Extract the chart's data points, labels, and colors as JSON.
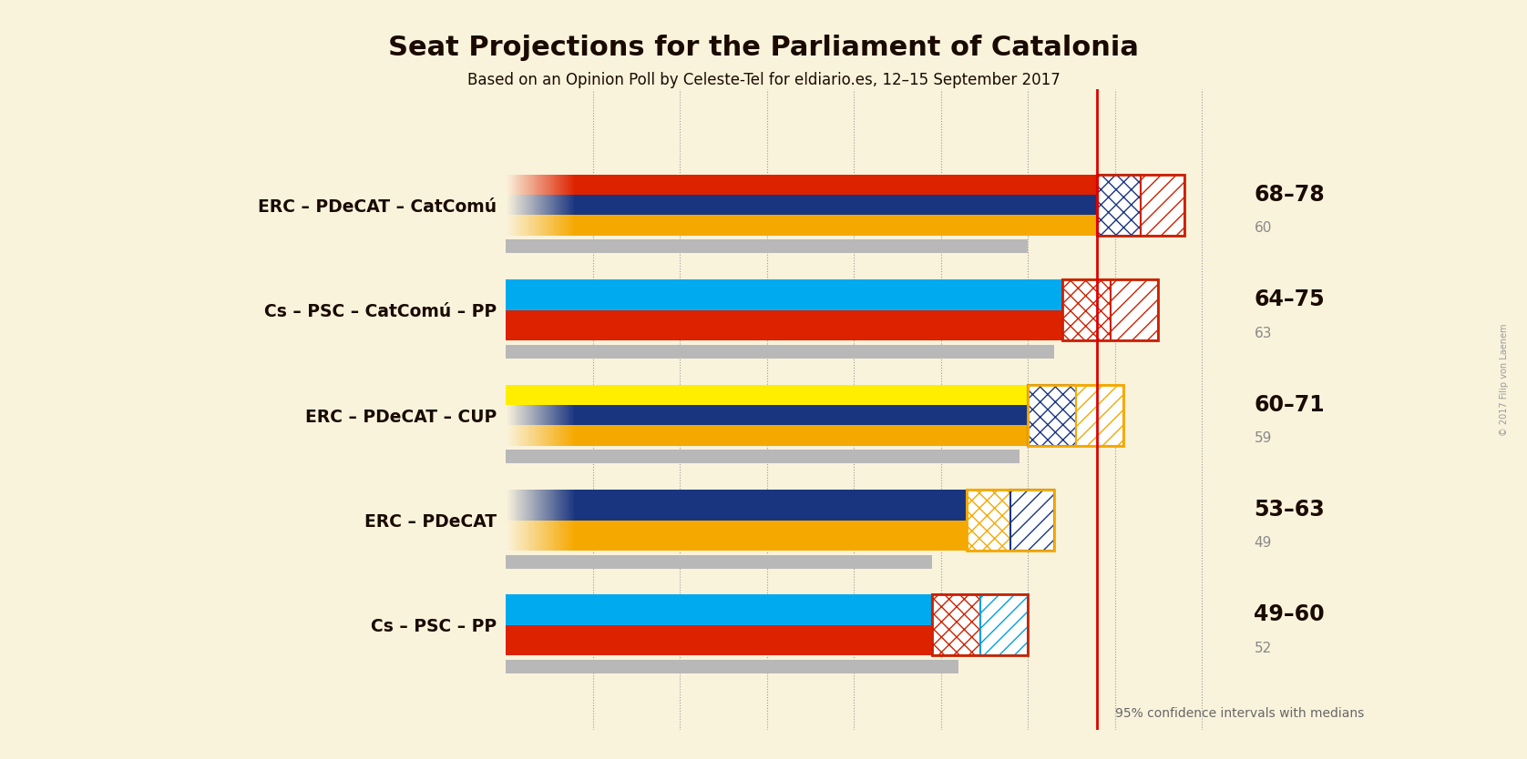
{
  "title": "Seat Projections for the Parliament of Catalonia",
  "subtitle": "Based on an Opinion Poll by Celeste-Tel for eldiario.es, 12–15 September 2017",
  "copyright": "© 2017 Filip von Laenem",
  "background_color": "#faf3dc",
  "coalitions": [
    {
      "name": "ERC – PDeCAT – CatComú",
      "median": 60,
      "ci_low": 68,
      "ci_high": 78,
      "label": "68–78",
      "median_label": "60",
      "stripes": [
        {
          "colors": [
            "#f5a800",
            "#f5a800",
            "#f5a800",
            "#e8c040"
          ],
          "gradient": true
        },
        {
          "colors": [
            "#1a3580",
            "#1a3580"
          ],
          "gradient": false
        },
        {
          "colors": [
            "#cc2200",
            "#cc2200"
          ],
          "gradient": false
        }
      ],
      "ci_box1_color": "#1a3580",
      "ci_box2_color": "#cc2200",
      "ci_outline_color": "#cc2200"
    },
    {
      "name": "Cs – PSC – CatComú – PP",
      "median": 63,
      "ci_low": 64,
      "ci_high": 75,
      "label": "64–75",
      "median_label": "63",
      "stripes": [
        {
          "colors": [
            "#cc2200",
            "#cc2200"
          ],
          "gradient": false
        },
        {
          "colors": [
            "#009FE3",
            "#009FE3"
          ],
          "gradient": false
        }
      ],
      "ci_box1_color": "#cc2200",
      "ci_box2_color": "#cc2200",
      "ci_outline_color": "#cc2200"
    },
    {
      "name": "ERC – PDeCAT – CUP",
      "median": 59,
      "ci_low": 60,
      "ci_high": 71,
      "label": "60–71",
      "median_label": "59",
      "stripes": [
        {
          "colors": [
            "#f5a800",
            "#f5a800",
            "#f5a800",
            "#e8c040"
          ],
          "gradient": true
        },
        {
          "colors": [
            "#1a3580",
            "#1a3580"
          ],
          "gradient": false
        },
        {
          "colors": [
            "#ffee00",
            "#ffee00"
          ],
          "gradient": false
        }
      ],
      "ci_box1_color": "#1a3580",
      "ci_box2_color": "#f5a800",
      "ci_outline_color": "#f5a800"
    },
    {
      "name": "ERC – PDeCAT",
      "median": 49,
      "ci_low": 53,
      "ci_high": 63,
      "label": "53–63",
      "median_label": "49",
      "stripes": [
        {
          "colors": [
            "#f5a800",
            "#f5a800",
            "#f5a800",
            "#e8c040"
          ],
          "gradient": true
        },
        {
          "colors": [
            "#1a3580",
            "#1a3580"
          ],
          "gradient": false
        }
      ],
      "ci_box1_color": "#f5a800",
      "ci_box2_color": "#1a3580",
      "ci_outline_color": "#f5a800"
    },
    {
      "name": "Cs – PSC – PP",
      "median": 52,
      "ci_low": 49,
      "ci_high": 60,
      "label": "49–60",
      "median_label": "52",
      "stripes": [
        {
          "colors": [
            "#cc2200",
            "#cc2200"
          ],
          "gradient": false
        },
        {
          "colors": [
            "#009FE3",
            "#009FE3"
          ],
          "gradient": false
        }
      ],
      "ci_box1_color": "#cc2200",
      "ci_box2_color": "#009FE3",
      "ci_outline_color": "#cc2200"
    }
  ],
  "xmax": 85,
  "xmin": 0,
  "footnote": "95% confidence intervals with medians",
  "dotted_lines": [
    10,
    20,
    30,
    40,
    50,
    60,
    70,
    80
  ],
  "red_line": 68,
  "gray_color": "#b8b8b8"
}
